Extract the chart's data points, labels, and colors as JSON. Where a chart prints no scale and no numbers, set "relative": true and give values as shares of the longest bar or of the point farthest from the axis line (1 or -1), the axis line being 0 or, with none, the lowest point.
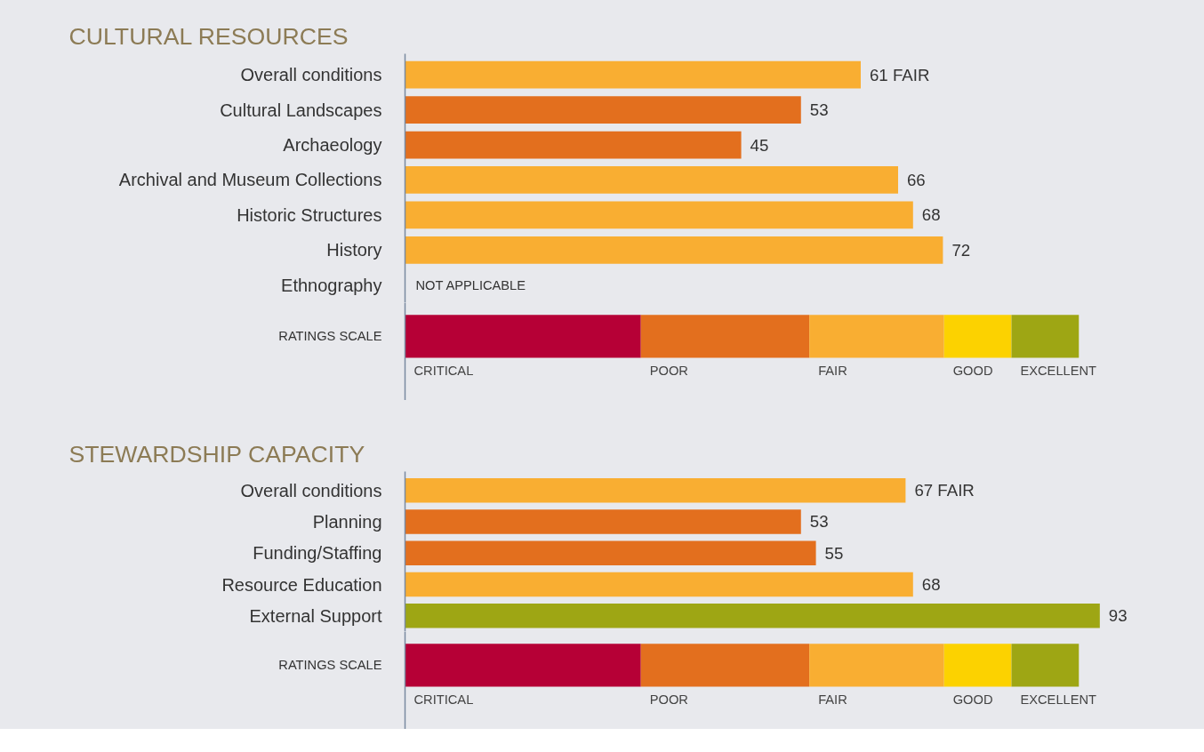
{
  "chart_data": [
    {
      "type": "bar",
      "orientation": "horizontal",
      "title": "CULTURAL RESOURCES",
      "categories": [
        "Overall conditions",
        "Cultural Landscapes",
        "Archaeology",
        "Archival and Museum Collections",
        "Historic Structures",
        "History",
        "Ethnography"
      ],
      "values": [
        61,
        53,
        45,
        66,
        68,
        72,
        null
      ],
      "colors": [
        "#f9ae32",
        "#e36f1e",
        "#e36f1e",
        "#f9ae32",
        "#f9ae32",
        "#f9ae32",
        null
      ],
      "value_labels": [
        "61 FAIR",
        "53",
        "45",
        "66",
        "68",
        "72",
        "NOT APPLICABLE"
      ],
      "tick_labels": "y",
      "grid": false
    },
    {
      "type": "bar",
      "orientation": "horizontal",
      "stacked": true,
      "relative": true,
      "categories": [
        "RATINGS SCALE"
      ],
      "series": [
        {
          "name": "CRITICAL",
          "color": "#b60036",
          "values": [
            0.35
          ]
        },
        {
          "name": "POOR",
          "color": "#e36f1e",
          "values": [
            0.25
          ]
        },
        {
          "name": "FAIR",
          "color": "#f9ae32",
          "values": [
            0.2
          ]
        },
        {
          "name": "GOOD",
          "color": "#fcd200",
          "values": [
            0.1
          ]
        },
        {
          "name": "EXCELLENT",
          "color": "#9ea614",
          "values": [
            0.1
          ]
        }
      ],
      "tick_labels": "y",
      "grid": false
    },
    {
      "type": "bar",
      "orientation": "horizontal",
      "title": "STEWARDSHIP CAPACITY",
      "categories": [
        "Overall conditions",
        "Planning",
        "Funding/Staffing",
        "Resource Education",
        "External Support"
      ],
      "values": [
        67,
        53,
        55,
        68,
        93
      ],
      "colors": [
        "#f9ae32",
        "#e36f1e",
        "#e36f1e",
        "#f9ae32",
        "#9ea614"
      ],
      "value_labels": [
        "67 FAIR",
        "53",
        "55",
        "68",
        "93"
      ],
      "tick_labels": "y",
      "grid": false
    },
    {
      "type": "bar",
      "orientation": "horizontal",
      "stacked": true,
      "relative": true,
      "categories": [
        "RATINGS SCALE"
      ],
      "series": [
        {
          "name": "CRITICAL",
          "color": "#b60036",
          "values": [
            0.35
          ]
        },
        {
          "name": "POOR",
          "color": "#e36f1e",
          "values": [
            0.25
          ]
        },
        {
          "name": "FAIR",
          "color": "#f9ae32",
          "values": [
            0.2
          ]
        },
        {
          "name": "GOOD",
          "color": "#fcd200",
          "values": [
            0.1
          ]
        },
        {
          "name": "EXCELLENT",
          "color": "#9ea614",
          "values": [
            0.1
          ]
        }
      ],
      "tick_labels": "y",
      "grid": false
    }
  ]
}
